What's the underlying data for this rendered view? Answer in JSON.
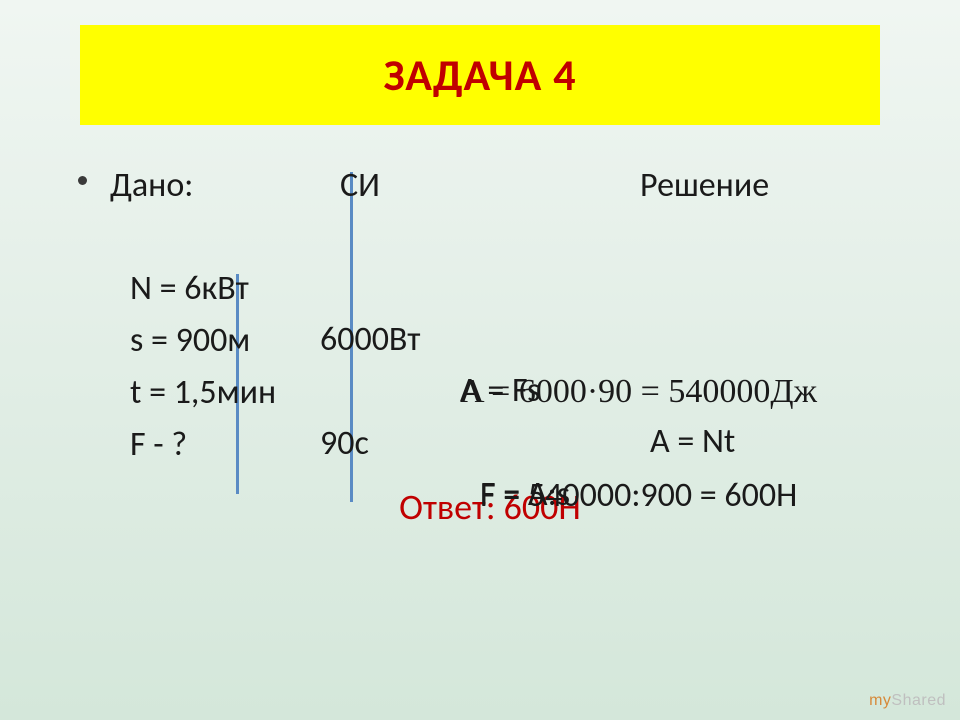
{
  "title": "ЗАДАЧА 4",
  "title_color": "#c00000",
  "title_bg": "#ffff00",
  "line_color": "#5a8bc4",
  "background_gradient": [
    "#f0f6f2",
    "#e2eee6",
    "#d4e7da"
  ],
  "text_color": "#1a1a1a",
  "body_fontsize": 34,
  "title_fontsize": 44,
  "headers": {
    "dano": "Дано:",
    "si": "СИ",
    "reshenie": "Решение"
  },
  "given": {
    "N": "N = 6кВт",
    "N_si": "6000Вт",
    "s": "s = 900м",
    "t": "t = 1,5мин",
    "t_si": "90с",
    "F": "F - ?"
  },
  "solution": {
    "eq1a": "A = Fs",
    "eq1b": "A = Nt",
    "eq2": "A = 6000·90 = 540000Дж",
    "eq3": "F = A:s",
    "eq4": "F = 540000:900 = 600Н"
  },
  "answer_label": "Ответ: 600Н",
  "watermark": {
    "my": "my",
    "shared": "Shared"
  }
}
